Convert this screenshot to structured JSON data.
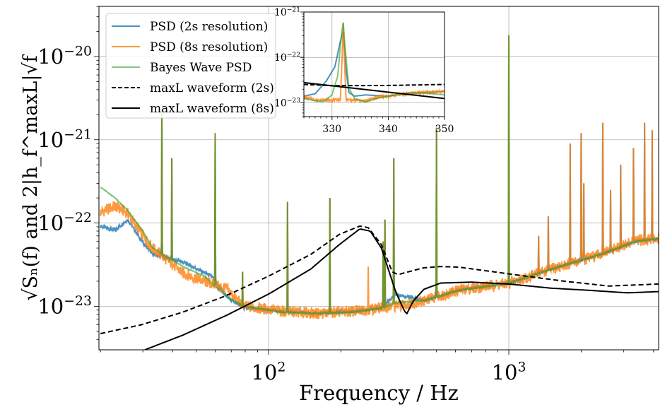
{
  "chart_data": [
    {
      "type": "line",
      "name": "main",
      "xlabel": "Frequency / Hz",
      "ylabel": "√Sₙ(f) and 2|h_f^maxL|√f",
      "xscale": "log",
      "yscale": "log",
      "xlim": [
        19.7,
        4200
      ],
      "ylim": [
        3e-24,
        4e-20
      ],
      "grid": true,
      "legend_position": "top-left",
      "xticks": [
        {
          "value": 100,
          "base": "10",
          "exp": "2"
        },
        {
          "value": 1000,
          "base": "10",
          "exp": "3"
        }
      ],
      "yticks": [
        {
          "value": 1e-20,
          "base": "10",
          "exp": "−20"
        },
        {
          "value": 1e-21,
          "base": "10",
          "exp": "−21"
        },
        {
          "value": 1e-22,
          "base": "10",
          "exp": "−22"
        },
        {
          "value": 1e-23,
          "base": "10",
          "exp": "−23"
        }
      ],
      "series": [
        {
          "name": "PSD (2s resolution)",
          "color": "#1f77b4",
          "style": "solid",
          "opacity": 0.8,
          "jitter": 0.02,
          "points": [
            [
              20,
              9.1e-23
            ],
            [
              23,
              8.2e-23
            ],
            [
              26,
              1.1e-22
            ],
            [
              29.6,
              6.1e-23
            ],
            [
              33,
              4.2e-23
            ],
            [
              44,
              3.4e-23
            ],
            [
              54,
              2.55e-23
            ],
            [
              58,
              2.3e-23
            ],
            [
              67,
              1.29e-23
            ],
            [
              79,
              9.6e-24
            ],
            [
              114,
              8.7e-24
            ],
            [
              160,
              8.2e-24
            ],
            [
              225,
              8.7e-24
            ],
            [
              295,
              9.6e-24
            ],
            [
              338,
              1.4e-23
            ],
            [
              443,
              1.17e-23
            ],
            [
              622,
              1.57e-23
            ],
            [
              1000,
              1.9e-23
            ],
            [
              1506,
              2.8e-23
            ],
            [
              2414,
              4.2e-23
            ],
            [
              3386,
              6.1e-23
            ],
            [
              4200,
              6.5e-23
            ]
          ]
        },
        {
          "name": "PSD (8s resolution)",
          "color": "#ff7f0e",
          "style": "solid",
          "opacity": 0.8,
          "jitter": 0.07,
          "points": [
            [
              20,
              1.34e-22
            ],
            [
              23,
              1.6e-22
            ],
            [
              26,
              1.3e-22
            ],
            [
              30,
              7e-23
            ],
            [
              33,
              5e-23
            ],
            [
              44,
              2.5e-23
            ],
            [
              54,
              2e-23
            ],
            [
              67,
              1.6e-23
            ],
            [
              79,
              1e-23
            ],
            [
              114,
              8.7e-24
            ],
            [
              160,
              8.2e-24
            ],
            [
              225,
              8.7e-24
            ],
            [
              295,
              9.6e-24
            ],
            [
              338,
              1e-23
            ],
            [
              443,
              1.17e-23
            ],
            [
              622,
              1.57e-23
            ],
            [
              1000,
              1.9e-23
            ],
            [
              1506,
              2.8e-23
            ],
            [
              2414,
              4.2e-23
            ],
            [
              3386,
              6.1e-23
            ],
            [
              4200,
              6.5e-23
            ]
          ]
        },
        {
          "name": "Bayes Wave PSD",
          "color": "#2ca02c",
          "style": "solid",
          "opacity": 0.6,
          "jitter": 0.005,
          "points": [
            [
              20,
              2.7e-22
            ],
            [
              23,
              2e-22
            ],
            [
              26,
              1.4e-22
            ],
            [
              30,
              8e-23
            ],
            [
              33,
              5e-23
            ],
            [
              44,
              3e-23
            ],
            [
              54,
              2.3e-23
            ],
            [
              67,
              1.3e-23
            ],
            [
              79,
              1e-23
            ],
            [
              114,
              8.5e-24
            ],
            [
              160,
              8.2e-24
            ],
            [
              225,
              8.5e-24
            ],
            [
              295,
              9.5e-24
            ],
            [
              338,
              1.1e-23
            ],
            [
              443,
              1.17e-23
            ],
            [
              622,
              1.55e-23
            ],
            [
              1000,
              1.9e-23
            ],
            [
              1506,
              2.8e-23
            ],
            [
              2414,
              4.2e-23
            ],
            [
              3386,
              6e-23
            ],
            [
              4200,
              6.5e-23
            ]
          ]
        },
        {
          "name": "maxL waveform (2s)",
          "color": "#000000",
          "style": "dashed",
          "opacity": 1,
          "jitter": 0,
          "points": [
            [
              20,
              4.7e-24
            ],
            [
              29.6,
              6e-24
            ],
            [
              44,
              8.5e-24
            ],
            [
              67,
              1.35e-23
            ],
            [
              100,
              2.3e-23
            ],
            [
              150,
              4.2e-23
            ],
            [
              197,
              7.3e-23
            ],
            [
              240,
              9.2e-23
            ],
            [
              260,
              8.8e-23
            ],
            [
              295,
              5.5e-23
            ],
            [
              327,
              2.6e-23
            ],
            [
              345,
              2.4e-23
            ],
            [
              443,
              2.9e-23
            ],
            [
              520,
              3e-23
            ],
            [
              622,
              2.95e-23
            ],
            [
              1000,
              2.45e-23
            ],
            [
              1700,
              2e-23
            ],
            [
              2600,
              1.75e-23
            ],
            [
              4200,
              1.85e-23
            ]
          ]
        },
        {
          "name": "maxL waveform (8s)",
          "color": "#000000",
          "style": "solid",
          "opacity": 1,
          "jitter": 0,
          "points": [
            [
              30.6,
              3e-24
            ],
            [
              44,
              4.5e-24
            ],
            [
              67,
              7.8e-24
            ],
            [
              100,
              1.4e-23
            ],
            [
              150,
              2.8e-23
            ],
            [
              197,
              5.5e-23
            ],
            [
              240,
              8.5e-23
            ],
            [
              265,
              8e-23
            ],
            [
              295,
              5e-23
            ],
            [
              338,
              1.5e-23
            ],
            [
              363,
              9.5e-24
            ],
            [
              375,
              8e-24
            ],
            [
              400,
              1.15e-23
            ],
            [
              443,
              1.6e-23
            ],
            [
              520,
              1.9e-23
            ],
            [
              700,
              1.95e-23
            ],
            [
              1000,
              1.85e-23
            ],
            [
              1500,
              1.65e-23
            ],
            [
              2200,
              1.55e-23
            ],
            [
              3100,
              1.45e-23
            ],
            [
              4200,
              1.5e-23
            ]
          ]
        }
      ],
      "spikes": [
        {
          "f": 36,
          "peak": 2.3e-21,
          "series": [
            0,
            1,
            2
          ]
        },
        {
          "f": 39.6,
          "peak": 6e-22,
          "series": [
            0,
            1,
            2
          ]
        },
        {
          "f": 60,
          "peak": 1.2e-21,
          "series": [
            0,
            1,
            2
          ]
        },
        {
          "f": 78,
          "peak": 2.6e-23,
          "series": [
            0,
            1,
            2
          ]
        },
        {
          "f": 120,
          "peak": 1.8e-22,
          "series": [
            0,
            1,
            2
          ]
        },
        {
          "f": 180,
          "peak": 2e-22,
          "series": [
            0,
            1,
            2
          ]
        },
        {
          "f": 260,
          "peak": 3e-23,
          "series": [
            1
          ]
        },
        {
          "f": 300,
          "peak": 6e-23,
          "series": [
            0,
            1,
            2
          ]
        },
        {
          "f": 305,
          "peak": 1.1e-22,
          "series": [
            0,
            1,
            2
          ]
        },
        {
          "f": 332,
          "peak": 6e-22,
          "series": [
            0,
            1,
            2
          ]
        },
        {
          "f": 500,
          "peak": 1.4e-21,
          "series": [
            0,
            1,
            2
          ]
        },
        {
          "f": 1000,
          "peak": 1.8e-20,
          "series": [
            0,
            1,
            2
          ]
        },
        {
          "f": 1330,
          "peak": 7e-23,
          "series": [
            0,
            1
          ]
        },
        {
          "f": 1460,
          "peak": 1.2e-22,
          "series": [
            0,
            1
          ]
        },
        {
          "f": 1800,
          "peak": 9e-22,
          "series": [
            0,
            1
          ]
        },
        {
          "f": 2000,
          "peak": 1.2e-21,
          "series": [
            0,
            1
          ]
        },
        {
          "f": 2050,
          "peak": 3e-22,
          "series": [
            0,
            1
          ]
        },
        {
          "f": 2460,
          "peak": 1.6e-21,
          "series": [
            0,
            1
          ]
        },
        {
          "f": 2650,
          "peak": 2.5e-22,
          "series": [
            0,
            1
          ]
        },
        {
          "f": 2920,
          "peak": 5e-22,
          "series": [
            0,
            1
          ]
        },
        {
          "f": 3300,
          "peak": 8e-22,
          "series": [
            0,
            1
          ]
        },
        {
          "f": 3670,
          "peak": 1.6e-21,
          "series": [
            0,
            1
          ]
        },
        {
          "f": 3950,
          "peak": 1.3e-21,
          "series": [
            0,
            1
          ]
        }
      ]
    },
    {
      "type": "line",
      "name": "inset",
      "xscale": "linear",
      "yscale": "log",
      "xlim": [
        325,
        350
      ],
      "ylim": [
        5e-24,
        1e-21
      ],
      "grid": true,
      "xticks": [
        {
          "value": 330,
          "label": "330"
        },
        {
          "value": 340,
          "label": "340"
        },
        {
          "value": 350,
          "label": "350"
        }
      ],
      "yticks": [
        {
          "value": 1e-21,
          "base": "10",
          "exp": "−21"
        },
        {
          "value": 1e-22,
          "base": "10",
          "exp": "−22"
        },
        {
          "value": 1e-23,
          "base": "10",
          "exp": "−23"
        }
      ],
      "series": [
        {
          "name": "PSD (2s resolution)",
          "color": "#1f77b4",
          "style": "solid",
          "opacity": 0.8,
          "points": [
            [
              325,
              1.41e-23
            ],
            [
              327,
              1.59e-23
            ],
            [
              329,
              3.05e-23
            ],
            [
              330.5,
              6.2e-23
            ],
            [
              331.5,
              2.3e-22
            ],
            [
              332,
              3.7e-22
            ],
            [
              332.5,
              5.5e-23
            ],
            [
              333,
              1.69e-23
            ],
            [
              334,
              1.41e-23
            ],
            [
              336,
              1.5e-23
            ],
            [
              340,
              1.41e-23
            ],
            [
              343,
              1.59e-23
            ],
            [
              346,
              1.69e-23
            ],
            [
              350,
              1.79e-23
            ]
          ]
        },
        {
          "name": "PSD (8s resolution)",
          "color": "#ff7f0e",
          "style": "solid",
          "opacity": 0.8,
          "points": [
            [
              325,
              1.33e-23
            ],
            [
              327,
              1.18e-23
            ],
            [
              329,
              1.15e-23
            ],
            [
              331.5,
              1.18e-23
            ],
            [
              331.8,
              1e-22
            ],
            [
              332,
              5.9e-22
            ],
            [
              332.2,
              1e-22
            ],
            [
              332.5,
              1.18e-23
            ],
            [
              334,
              1.15e-23
            ],
            [
              336,
              1.11e-23
            ],
            [
              338,
              1.33e-23
            ],
            [
              340,
              1.41e-23
            ],
            [
              343,
              1.59e-23
            ],
            [
              346,
              1.69e-23
            ],
            [
              350,
              1.79e-23
            ]
          ]
        },
        {
          "name": "Bayes Wave PSD",
          "color": "#2ca02c",
          "style": "solid",
          "opacity": 0.6,
          "points": [
            [
              325,
              1.26e-23
            ],
            [
              327,
              1.11e-23
            ],
            [
              328.5,
              1.07e-23
            ],
            [
              330,
              1.5e-23
            ],
            [
              331,
              3.9e-23
            ],
            [
              331.7,
              3.3e-22
            ],
            [
              332,
              5.9e-22
            ],
            [
              332.3,
              1.8e-22
            ],
            [
              333,
              2.14e-23
            ],
            [
              334,
              1.26e-23
            ],
            [
              336,
              1.05e-23
            ],
            [
              338,
              1.26e-23
            ],
            [
              340,
              1.41e-23
            ],
            [
              344,
              1.69e-23
            ],
            [
              348,
              1.59e-23
            ],
            [
              350,
              1.5e-23
            ]
          ]
        },
        {
          "name": "maxL waveform (2s)",
          "color": "#000000",
          "style": "dashed",
          "opacity": 1,
          "points": [
            [
              325,
              2.55e-23
            ],
            [
              330,
              2.4e-23
            ],
            [
              340,
              2.42e-23
            ],
            [
              350,
              2.55e-23
            ]
          ]
        },
        {
          "name": "maxL waveform (8s)",
          "color": "#000000",
          "style": "solid",
          "opacity": 1,
          "points": [
            [
              325,
              2.8e-23
            ],
            [
              350,
              1.25e-23
            ]
          ]
        }
      ]
    }
  ]
}
